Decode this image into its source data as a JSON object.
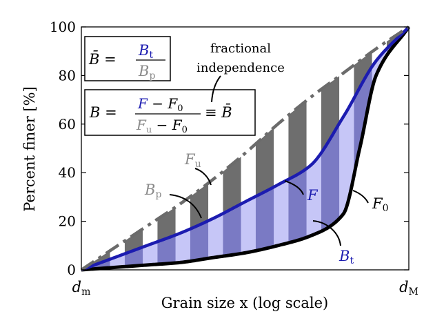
{
  "chart_data": {
    "type": "area",
    "title": "",
    "xlabel": "Grain size x (log scale)",
    "ylabel": "Percent finer [%]",
    "ylim": [
      0,
      100
    ],
    "xlim": [
      0,
      1
    ],
    "x_ticks": [
      {
        "x": 0,
        "label_main": "d",
        "label_sub": "m"
      },
      {
        "x": 1,
        "label_main": "d",
        "label_sub": "M"
      }
    ],
    "y_ticks": [
      0,
      20,
      40,
      60,
      80,
      100
    ],
    "series": [
      {
        "name": "F_u",
        "label_main": "F",
        "label_sub": "u",
        "style": "dash-dot",
        "color": "#6b6b6b",
        "x": [
          0,
          0.1,
          0.2,
          0.3,
          0.4,
          0.5,
          0.6,
          0.7,
          0.8,
          0.9,
          1.0
        ],
        "values": [
          0,
          9,
          18,
          27,
          37,
          48,
          60,
          71,
          81,
          91,
          100
        ]
      },
      {
        "name": "F",
        "label_main": "F",
        "style": "solid",
        "color": "#1c1cb0",
        "x": [
          0,
          0.1,
          0.2,
          0.3,
          0.4,
          0.5,
          0.6,
          0.7,
          0.8,
          0.9,
          1.0
        ],
        "values": [
          0,
          5,
          10,
          15,
          21,
          28,
          35,
          43,
          63,
          86,
          100
        ]
      },
      {
        "name": "F_0",
        "label_main": "F",
        "label_sub": "0",
        "style": "solid",
        "color": "#000000",
        "x": [
          0,
          0.1,
          0.2,
          0.3,
          0.4,
          0.5,
          0.6,
          0.7,
          0.8,
          0.85,
          0.9,
          1.0
        ],
        "values": [
          0,
          1,
          2,
          3,
          5,
          7,
          10,
          14,
          23,
          50,
          80,
          100
        ]
      }
    ],
    "bands": {
      "count": 10,
      "fill_upper_color": "#6e6e6e",
      "fill_lower_color": "#7a7ac4",
      "light_lower_color": "#c6c6f7"
    },
    "annotations": {
      "B_t": {
        "main": "B",
        "sub": "t"
      },
      "B_p": {
        "main": "B",
        "sub": "p"
      },
      "fractional_independence": [
        "fractional",
        "independence"
      ],
      "box1": {
        "lhs": "B̄ =",
        "num_main": "B",
        "num_sub": "t",
        "den_main": "B",
        "den_sub": "p"
      },
      "box2": {
        "lhs": "B =",
        "num_a": "F",
        "num_op": " − ",
        "num_b_main": "F",
        "num_b_sub": "0",
        "den_a_main": "F",
        "den_a_sub": "u",
        "den_op": " − ",
        "den_b_main": "F",
        "den_b_sub": "0",
        "rhs": "≡ B̄"
      }
    },
    "colors": {
      "upper_curve": "#6b6b6b",
      "mid_curve": "#1c1cb0",
      "lower_curve": "#000000",
      "light_band": "#c6c6f7"
    }
  }
}
